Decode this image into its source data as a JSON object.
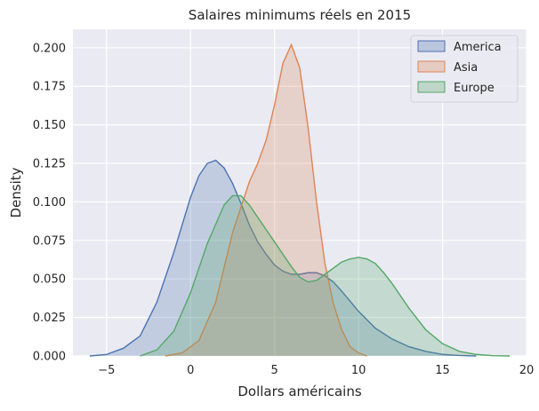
{
  "chart_data": {
    "type": "area",
    "title": "Salaires minimums réels en 2015",
    "xlabel": "Dollars américains",
    "ylabel": "Density",
    "xlim": [
      -7,
      20
    ],
    "ylim": [
      0,
      0.212
    ],
    "xticks": [
      -5,
      0,
      5,
      10,
      15,
      20
    ],
    "xtick_labels": [
      "−5",
      "0",
      "5",
      "10",
      "15",
      "20"
    ],
    "yticks": [
      0,
      0.025,
      0.05,
      0.075,
      0.1,
      0.125,
      0.15,
      0.175,
      0.2
    ],
    "ytick_labels": [
      "0.000",
      "0.025",
      "0.050",
      "0.075",
      "0.100",
      "0.125",
      "0.150",
      "0.175",
      "0.200"
    ],
    "grid": true,
    "legend_position": "top-right",
    "series": [
      {
        "name": "America",
        "color": "#4c72b0",
        "x": [
          -6,
          -5,
          -4,
          -3,
          -2,
          -1,
          0,
          0.5,
          1,
          1.5,
          2,
          2.5,
          3,
          3.5,
          4,
          4.5,
          5,
          5.5,
          6,
          6.5,
          7,
          7.5,
          8,
          8.5,
          9,
          10,
          11,
          12,
          13,
          14,
          15,
          16,
          17
        ],
        "y": [
          0,
          0.001,
          0.005,
          0.013,
          0.035,
          0.067,
          0.103,
          0.117,
          0.125,
          0.127,
          0.122,
          0.112,
          0.099,
          0.085,
          0.074,
          0.066,
          0.059,
          0.055,
          0.053,
          0.053,
          0.054,
          0.054,
          0.052,
          0.048,
          0.042,
          0.029,
          0.018,
          0.011,
          0.006,
          0.003,
          0.001,
          0.0003,
          0
        ]
      },
      {
        "name": "Asia",
        "color": "#dd8452",
        "x": [
          -1.5,
          -0.5,
          0.5,
          1.5,
          2.5,
          3.5,
          4,
          4.5,
          5,
          5.5,
          6,
          6.5,
          7,
          7.5,
          8,
          8.5,
          9,
          9.5,
          10,
          10.5
        ],
        "y": [
          0,
          0.002,
          0.01,
          0.035,
          0.08,
          0.113,
          0.125,
          0.14,
          0.163,
          0.19,
          0.202,
          0.187,
          0.148,
          0.1,
          0.06,
          0.034,
          0.017,
          0.006,
          0.002,
          0
        ]
      },
      {
        "name": "Europe",
        "color": "#55a868",
        "x": [
          -3,
          -2,
          -1,
          0,
          1,
          2,
          2.5,
          3,
          3.5,
          4,
          4.5,
          5,
          5.5,
          6,
          6.5,
          7,
          7.5,
          8,
          8.5,
          9,
          9.5,
          10,
          10.5,
          11,
          11.5,
          12,
          13,
          14,
          15,
          16,
          17,
          18,
          19
        ],
        "y": [
          0,
          0.004,
          0.016,
          0.041,
          0.073,
          0.098,
          0.104,
          0.104,
          0.098,
          0.09,
          0.082,
          0.074,
          0.066,
          0.058,
          0.051,
          0.048,
          0.049,
          0.053,
          0.057,
          0.061,
          0.063,
          0.064,
          0.063,
          0.06,
          0.054,
          0.047,
          0.031,
          0.017,
          0.008,
          0.003,
          0.001,
          0.0002,
          0
        ]
      }
    ]
  }
}
